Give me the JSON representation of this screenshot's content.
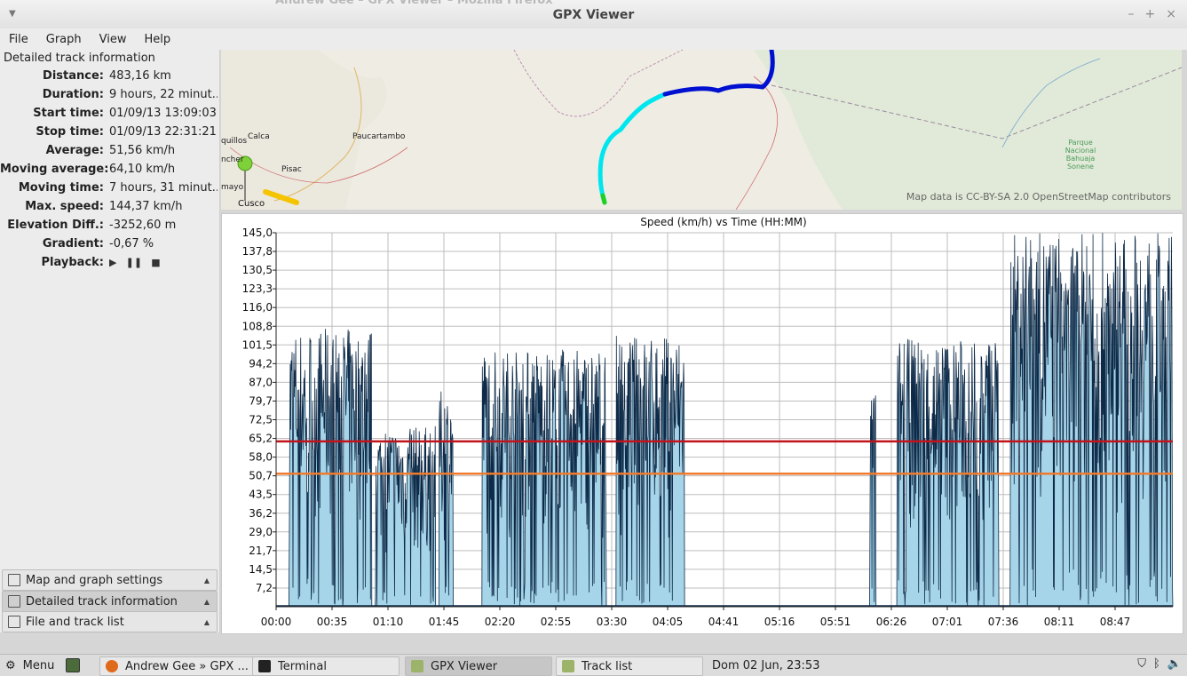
{
  "window": {
    "ghost_title": "Andrew Gee – GPX Viewer – Mozilla Firefox",
    "title": "GPX Viewer",
    "controls": [
      "–",
      "+",
      "×"
    ]
  },
  "menu": [
    "File",
    "Graph",
    "View",
    "Help"
  ],
  "panel": {
    "header": "Detailed track information",
    "rows": [
      {
        "key": "Distance:",
        "val": "483,16 km"
      },
      {
        "key": "Duration:",
        "val": "9 hours, 22 minut..."
      },
      {
        "key": "Start time:",
        "val": "01/09/13 13:09:03"
      },
      {
        "key": "Stop time:",
        "val": "01/09/13 22:31:21"
      },
      {
        "key": "Average:",
        "val": "51,56 km/h"
      },
      {
        "key": "Moving average:",
        "val": "64,10 km/h"
      },
      {
        "key": "Moving time:",
        "val": "7 hours, 31 minut..."
      },
      {
        "key": "Max. speed:",
        "val": "144,37 km/h"
      },
      {
        "key": "Elevation Diff.:",
        "val": "-3252,60 m"
      },
      {
        "key": "Gradient:",
        "val": "-0,67 %"
      }
    ],
    "playback_label": "Playback:",
    "playback_icons": [
      "▶",
      "❚❚",
      "■"
    ],
    "stack_buttons": [
      {
        "label": "Map and graph settings",
        "active": false
      },
      {
        "label": "Detailed track information",
        "active": true
      },
      {
        "label": "File and track list",
        "active": false
      }
    ]
  },
  "map": {
    "places": [
      "Calca",
      "Paucartambo",
      "Pisac",
      "Cusco",
      "quillos",
      "ncher",
      "mayo",
      "Parque",
      "Nacional",
      "Bahuaja",
      "Sonene"
    ],
    "attribution": "Map data is CC-BY-SA 2.0 OpenStreetMap contributors"
  },
  "chart_data": {
    "type": "area",
    "title": "Speed (km/h) vs Time (HH:MM)",
    "xlabel": "",
    "ylabel": "",
    "x_ticks": [
      "00:00",
      "00:35",
      "01:10",
      "01:45",
      "02:20",
      "02:55",
      "03:30",
      "04:05",
      "04:41",
      "05:16",
      "05:51",
      "06:26",
      "07:01",
      "07:36",
      "08:11",
      "08:47"
    ],
    "y_ticks": [
      "7,2",
      "14,5",
      "21,7",
      "29,0",
      "36,2",
      "43,5",
      "50,7",
      "58,0",
      "65,2",
      "72,5",
      "79,7",
      "87,0",
      "94,2",
      "101,5",
      "108,8",
      "116,0",
      "123,3",
      "130,5",
      "137,8",
      "145,0"
    ],
    "ylim": [
      0,
      145
    ],
    "xlim_minutes": [
      0,
      562
    ],
    "reference_lines": [
      {
        "name": "Moving average",
        "value": 64.1,
        "color": "#c0131b"
      },
      {
        "name": "Average",
        "value": 51.56,
        "color": "#f07a2d"
      }
    ],
    "segments": [
      {
        "start": 8,
        "end": 60,
        "peak": 108
      },
      {
        "start": 62,
        "end": 100,
        "peak": 70
      },
      {
        "start": 102,
        "end": 111,
        "peak": 84
      },
      {
        "start": 129,
        "end": 207,
        "peak": 100
      },
      {
        "start": 213,
        "end": 256,
        "peak": 105
      },
      {
        "start": 372,
        "end": 376,
        "peak": 86
      },
      {
        "start": 389,
        "end": 453,
        "peak": 104
      },
      {
        "start": 460,
        "end": 562,
        "peak": 145
      }
    ],
    "fill_color": "#a6d4e8",
    "line_color": "#0d2a48"
  },
  "taskbar": {
    "menu": "Menu",
    "items": [
      {
        "label": "Andrew Gee » GPX ...",
        "active": false
      },
      {
        "label": "Terminal",
        "active": false
      },
      {
        "label": "GPX Viewer",
        "active": true
      },
      {
        "label": "Track list",
        "active": false
      }
    ],
    "clock": "Dom 02 Jun, 23:53"
  }
}
